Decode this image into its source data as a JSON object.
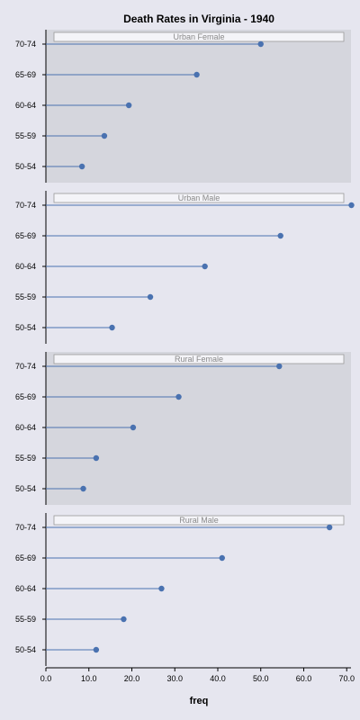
{
  "chart_data": {
    "type": "scatter",
    "style": "dot-plot with lines from x=0 (lollipop)",
    "title": "Death Rates in Virginia - 1940",
    "xlabel": "freq",
    "ylabel": "",
    "xlim": [
      0,
      71
    ],
    "xticks": [
      "0.0",
      "10.0",
      "20.0",
      "30.0",
      "40.0",
      "50.0",
      "60.0",
      "70.0"
    ],
    "categories": [
      "70-74",
      "65-69",
      "60-64",
      "55-59",
      "50-54"
    ],
    "grid": false,
    "legend": "none",
    "colors": {
      "marker": "#4a72b0",
      "panel_shaded": "#d5d6dd",
      "panel_plain": "#e6e6ef",
      "strip_bg": "#f4f4f8"
    },
    "panels": [
      {
        "name": "Urban Female",
        "shaded": true,
        "values": [
          50.0,
          35.1,
          19.3,
          13.6,
          8.4
        ]
      },
      {
        "name": "Urban Male",
        "shaded": false,
        "values": [
          71.1,
          54.6,
          37.0,
          24.3,
          15.4
        ]
      },
      {
        "name": "Rural Female",
        "shaded": true,
        "values": [
          54.3,
          30.9,
          20.3,
          11.7,
          8.7
        ]
      },
      {
        "name": "Rural Male",
        "shaded": false,
        "values": [
          66.0,
          41.0,
          26.9,
          18.1,
          11.7
        ]
      }
    ]
  }
}
